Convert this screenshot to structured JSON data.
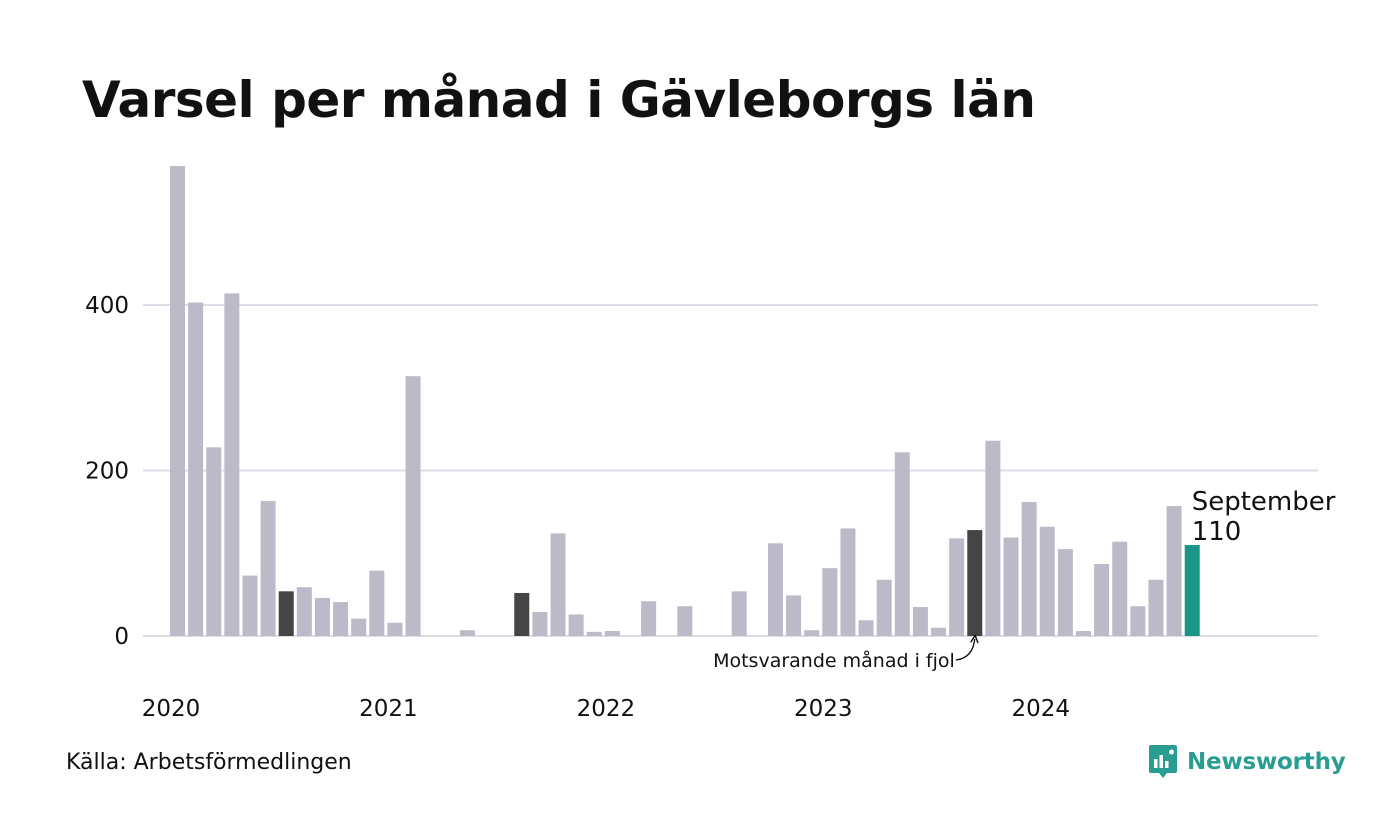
{
  "title": "Varsel per månad i Gävleborgs län",
  "source": "Källa: Arbetsförmedlingen",
  "brand": {
    "name": "Newsworthy",
    "icon": "newsworthy-logo-icon",
    "color": "#2a9d92"
  },
  "colors": {
    "bar": "#bcbac8",
    "highlight": "#454545",
    "current": "#1a9688",
    "grid": "#dedde6"
  },
  "chart_data": {
    "type": "bar",
    "title": "Varsel per månad i Gävleborgs län",
    "xlabel": "",
    "ylabel": "",
    "ylim": [
      0,
      570
    ],
    "yticks": [
      0,
      200,
      400
    ],
    "xticks": [
      "2020",
      "2021",
      "2022",
      "2023",
      "2024"
    ],
    "grid": true,
    "categories": [
      "2020-01",
      "2020-02",
      "2020-03",
      "2020-04",
      "2020-05",
      "2020-06",
      "2020-07",
      "2020-08",
      "2020-09",
      "2020-10",
      "2020-11",
      "2020-12",
      "2021-01",
      "2021-02",
      "2021-03",
      "2021-04",
      "2021-05",
      "2021-06",
      "2021-07",
      "2021-08",
      "2021-09",
      "2021-10",
      "2021-11",
      "2021-12",
      "2022-01",
      "2022-02",
      "2022-03",
      "2022-04",
      "2022-05",
      "2022-06",
      "2022-07",
      "2022-08",
      "2022-09",
      "2022-10",
      "2022-11",
      "2022-12",
      "2023-01",
      "2023-02",
      "2023-03",
      "2023-04",
      "2023-05",
      "2023-06",
      "2023-07",
      "2023-08",
      "2023-09",
      "2023-10",
      "2023-11",
      "2023-12",
      "2024-01",
      "2024-02",
      "2024-03",
      "2024-04",
      "2024-05",
      "2024-06",
      "2024-07",
      "2024-08",
      "2024-09"
    ],
    "values": [
      568,
      403,
      228,
      414,
      73,
      163,
      54,
      59,
      46,
      41,
      21,
      79,
      16,
      314,
      0,
      0,
      7,
      0,
      0,
      52,
      29,
      124,
      26,
      5,
      6,
      0,
      42,
      0,
      36,
      0,
      0,
      54,
      0,
      112,
      49,
      7,
      82,
      130,
      19,
      68,
      222,
      35,
      10,
      118,
      128,
      236,
      119,
      162,
      132,
      105,
      6,
      87,
      114,
      36,
      68,
      157,
      110
    ],
    "highlighted": [
      6,
      19,
      44
    ],
    "current_index": 56,
    "current_label": {
      "month": "September",
      "value": "110"
    },
    "annotation": "Motsvarande månad i fjol"
  }
}
